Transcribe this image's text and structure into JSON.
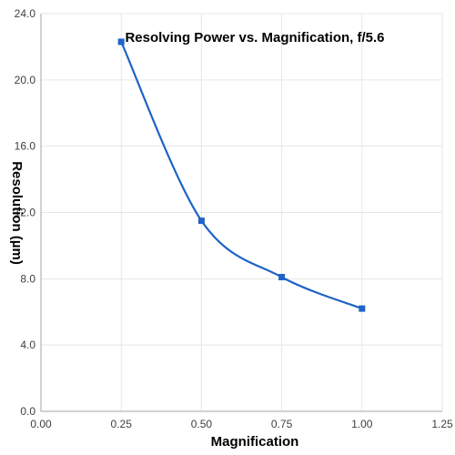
{
  "chart_data": {
    "type": "line",
    "title": "Resolving Power vs. Magnification, f/5.6",
    "xlabel": "Magnification",
    "ylabel": "Resolution (µm)",
    "xlim": [
      0,
      1.25
    ],
    "ylim": [
      0,
      24
    ],
    "x_ticks": [
      "0.00",
      "0.25",
      "0.50",
      "0.75",
      "1.00",
      "1.25"
    ],
    "y_ticks": [
      "0.0",
      "4.0",
      "8.0",
      "12.0",
      "16.0",
      "20.0",
      "24.0"
    ],
    "grid": true,
    "legend": "none",
    "series": [
      {
        "color": "#1f63c6",
        "marker": "square",
        "smooth": true,
        "x": [
          0.25,
          0.5,
          0.75,
          1.0
        ],
        "y": [
          22.3,
          11.5,
          8.1,
          6.2
        ]
      }
    ]
  }
}
